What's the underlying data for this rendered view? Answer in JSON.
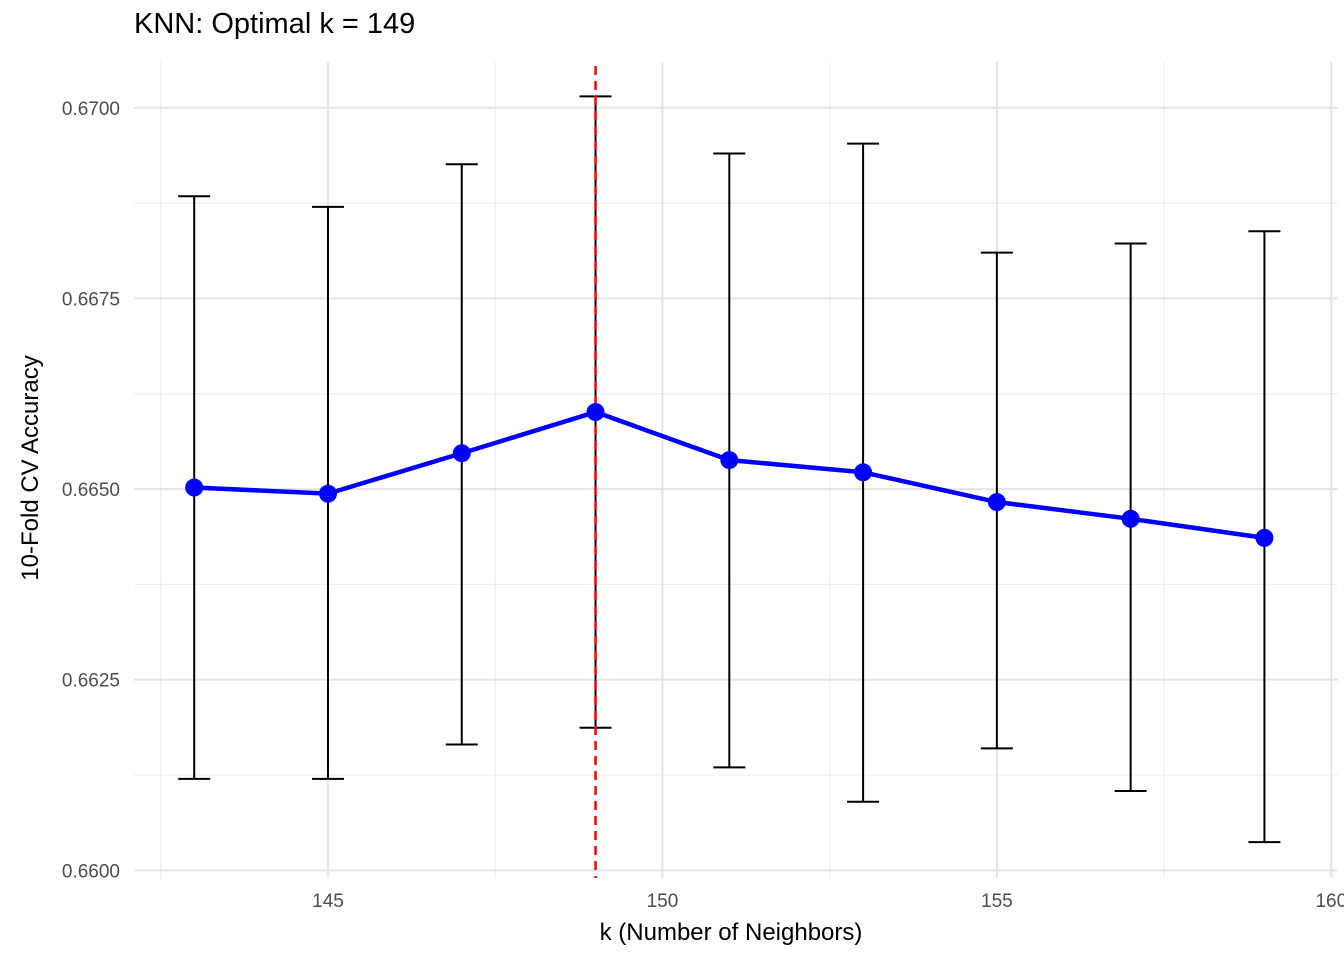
{
  "chart_data": {
    "type": "line",
    "title": "KNN: Optimal k = 149",
    "xlabel": "k (Number of Neighbors)",
    "ylabel": "10-Fold CV Accuracy",
    "xlim": [
      142.1,
      160.1
    ],
    "ylim": [
      0.6599,
      0.6706
    ],
    "x_ticks": [
      145,
      150,
      155,
      160
    ],
    "y_ticks": [
      0.66,
      0.6625,
      0.665,
      0.6675,
      0.67
    ],
    "x_tick_labels": [
      "145",
      "150",
      "155",
      "160"
    ],
    "y_tick_labels": [
      "0.6600",
      "0.6625",
      "0.6650",
      "0.6675",
      "0.6700"
    ],
    "grid": true,
    "series": [
      {
        "x": [
          143,
          145,
          147,
          149,
          151,
          153,
          155,
          157,
          159
        ],
        "y": [
          0.66502,
          0.66494,
          0.66547,
          0.66601,
          0.66538,
          0.66522,
          0.66483,
          0.66461,
          0.66436
        ],
        "error_low": [
          0.6612,
          0.6612,
          0.66165,
          0.66187,
          0.66135,
          0.6609,
          0.6616,
          0.66104,
          0.66037
        ],
        "error_high": [
          0.66884,
          0.6687,
          0.66926,
          0.67015,
          0.6694,
          0.66953,
          0.6681,
          0.66822,
          0.66838
        ],
        "color": "#0000ff"
      }
    ],
    "optimal_k": 149,
    "vline_color": "#ff0000",
    "errorbar_color": "#000000"
  }
}
